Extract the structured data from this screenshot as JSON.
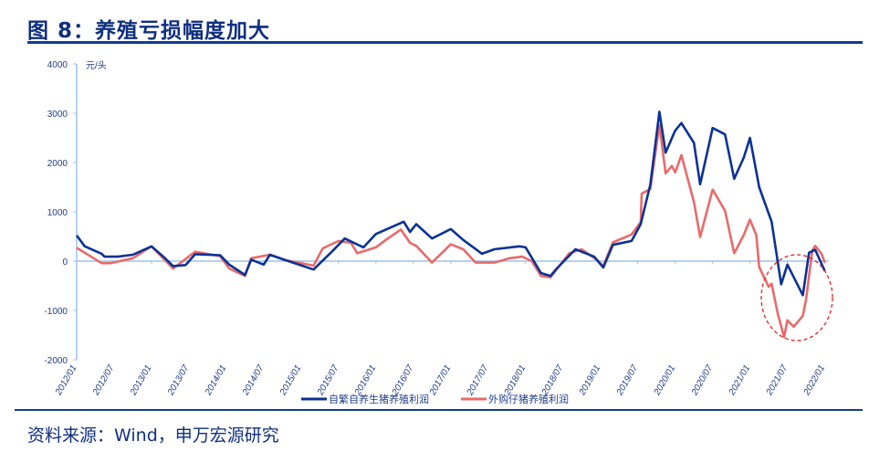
{
  "title": "图 8：养殖亏损幅度加大",
  "source": "资料来源：Wind，申万宏源研究",
  "chart_data": {
    "type": "line",
    "title": "",
    "ylabel": "元/头",
    "xlabel": "",
    "ylim": [
      -2000,
      4000
    ],
    "yticks": [
      "4000",
      "3000",
      "2000",
      "1000",
      "0",
      "-1000",
      "-2000"
    ],
    "xticks": [
      "2012/01",
      "2012/07",
      "2013/01",
      "2013/07",
      "2014/01",
      "2014/07",
      "2015/01",
      "2015/07",
      "2016/01",
      "2016/07",
      "2017/01",
      "2017/07",
      "2018/01",
      "2018/07",
      "2019/01",
      "2019/07",
      "2020/01",
      "2020/07",
      "2021/01",
      "2021/07",
      "2022/01"
    ],
    "legend_position": "bottom",
    "annotation": "red dashed ellipse around 2021/07–2022/01 losses",
    "series": [
      {
        "name": "自繁自养生猪养殖利润",
        "color": "#0a3296",
        "points": [
          [
            "2012-01-01",
            520
          ],
          [
            "2012-02-10",
            300
          ],
          [
            "2012-05-01",
            150
          ],
          [
            "2012-05-15",
            90
          ],
          [
            "2012-07-20",
            90
          ],
          [
            "2012-10-01",
            130
          ],
          [
            "2013-01-01",
            300
          ],
          [
            "2013-03-01",
            80
          ],
          [
            "2013-04-15",
            -100
          ],
          [
            "2013-06-15",
            -80
          ],
          [
            "2013-08-01",
            140
          ],
          [
            "2013-12-01",
            120
          ],
          [
            "2014-01-15",
            -70
          ],
          [
            "2014-04-01",
            -280
          ],
          [
            "2014-05-01",
            30
          ],
          [
            "2014-07-01",
            -70
          ],
          [
            "2014-08-01",
            130
          ],
          [
            "2014-10-15",
            20
          ],
          [
            "2015-03-01",
            -170
          ],
          [
            "2015-06-01",
            200
          ],
          [
            "2015-08-01",
            460
          ],
          [
            "2015-11-01",
            280
          ],
          [
            "2016-01-01",
            550
          ],
          [
            "2016-05-15",
            800
          ],
          [
            "2016-06-15",
            590
          ],
          [
            "2016-07-15",
            750
          ],
          [
            "2016-10-01",
            460
          ],
          [
            "2017-01-01",
            650
          ],
          [
            "2017-03-01",
            430
          ],
          [
            "2017-06-01",
            150
          ],
          [
            "2017-08-01",
            240
          ],
          [
            "2017-12-01",
            300
          ],
          [
            "2018-01-01",
            280
          ],
          [
            "2018-03-15",
            -240
          ],
          [
            "2018-05-01",
            -300
          ],
          [
            "2018-06-01",
            -150
          ],
          [
            "2018-09-01",
            240
          ],
          [
            "2018-12-01",
            90
          ],
          [
            "2019-01-15",
            -130
          ],
          [
            "2019-03-01",
            330
          ],
          [
            "2019-06-01",
            410
          ],
          [
            "2019-07-15",
            750
          ],
          [
            "2019-09-01",
            1550
          ],
          [
            "2019-10-15",
            3030
          ],
          [
            "2019-11-15",
            2200
          ],
          [
            "2020-01-01",
            2650
          ],
          [
            "2020-02-01",
            2800
          ],
          [
            "2020-04-01",
            2400
          ],
          [
            "2020-05-01",
            1560
          ],
          [
            "2020-07-01",
            2700
          ],
          [
            "2020-09-01",
            2570
          ],
          [
            "2020-10-15",
            1670
          ],
          [
            "2020-12-01",
            2100
          ],
          [
            "2021-01-01",
            2500
          ],
          [
            "2021-02-15",
            1500
          ],
          [
            "2021-04-15",
            800
          ],
          [
            "2021-06-01",
            -470
          ],
          [
            "2021-07-01",
            -70
          ],
          [
            "2021-09-15",
            -690
          ],
          [
            "2021-10-15",
            170
          ],
          [
            "2021-11-15",
            230
          ],
          [
            "2022-01-01",
            -200
          ]
        ]
      },
      {
        "name": "外购仔猪养殖利润",
        "color": "#e96a6a",
        "points": [
          [
            "2012-01-01",
            270
          ],
          [
            "2012-05-01",
            -40
          ],
          [
            "2012-06-15",
            -40
          ],
          [
            "2012-10-01",
            60
          ],
          [
            "2013-01-01",
            300
          ],
          [
            "2013-04-15",
            -150
          ],
          [
            "2013-08-01",
            190
          ],
          [
            "2013-12-01",
            100
          ],
          [
            "2014-01-15",
            -150
          ],
          [
            "2014-04-01",
            -300
          ],
          [
            "2014-05-01",
            60
          ],
          [
            "2014-08-01",
            130
          ],
          [
            "2014-10-15",
            20
          ],
          [
            "2015-03-01",
            -90
          ],
          [
            "2015-04-15",
            260
          ],
          [
            "2015-07-01",
            410
          ],
          [
            "2015-09-01",
            370
          ],
          [
            "2015-10-01",
            160
          ],
          [
            "2016-01-01",
            280
          ],
          [
            "2016-02-15",
            420
          ],
          [
            "2016-05-01",
            640
          ],
          [
            "2016-06-15",
            370
          ],
          [
            "2016-07-15",
            310
          ],
          [
            "2016-10-01",
            -30
          ],
          [
            "2017-01-01",
            340
          ],
          [
            "2017-03-01",
            240
          ],
          [
            "2017-05-01",
            -30
          ],
          [
            "2017-08-01",
            -30
          ],
          [
            "2017-10-15",
            60
          ],
          [
            "2017-12-15",
            90
          ],
          [
            "2018-02-01",
            0
          ],
          [
            "2018-03-15",
            -300
          ],
          [
            "2018-05-01",
            -330
          ],
          [
            "2018-08-01",
            160
          ],
          [
            "2018-10-01",
            240
          ],
          [
            "2018-12-15",
            20
          ],
          [
            "2019-01-15",
            -100
          ],
          [
            "2019-03-01",
            380
          ],
          [
            "2019-06-01",
            540
          ],
          [
            "2019-07-15",
            790
          ],
          [
            "2019-07-20",
            1370
          ],
          [
            "2019-09-01",
            1460
          ],
          [
            "2019-10-15",
            2760
          ],
          [
            "2019-11-15",
            1780
          ],
          [
            "2019-12-15",
            1930
          ],
          [
            "2020-01-01",
            1800
          ],
          [
            "2020-02-01",
            2150
          ],
          [
            "2020-04-01",
            1200
          ],
          [
            "2020-05-01",
            490
          ],
          [
            "2020-07-01",
            1450
          ],
          [
            "2020-09-01",
            1020
          ],
          [
            "2020-10-15",
            160
          ],
          [
            "2020-12-01",
            530
          ],
          [
            "2021-01-01",
            840
          ],
          [
            "2021-02-01",
            530
          ],
          [
            "2021-02-15",
            -120
          ],
          [
            "2021-04-01",
            -520
          ],
          [
            "2021-04-15",
            -460
          ],
          [
            "2021-05-15",
            -1070
          ],
          [
            "2021-06-15",
            -1540
          ],
          [
            "2021-07-01",
            -1200
          ],
          [
            "2021-08-01",
            -1330
          ],
          [
            "2021-09-15",
            -1110
          ],
          [
            "2021-10-01",
            -770
          ],
          [
            "2021-11-01",
            220
          ],
          [
            "2021-11-15",
            310
          ],
          [
            "2021-12-15",
            150
          ],
          [
            "2022-01-01",
            -30
          ]
        ]
      }
    ]
  }
}
